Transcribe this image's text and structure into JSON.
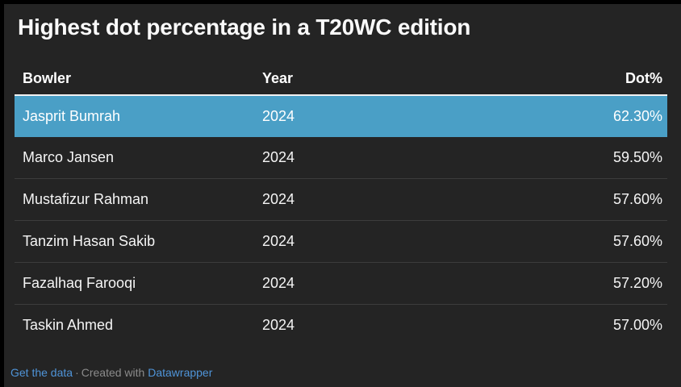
{
  "title": "Highest dot percentage in a T20WC edition",
  "colors": {
    "frame": "#000000",
    "background": "#242424",
    "highlight": "#4a9fc6",
    "link": "#4f94d8",
    "header_rule": "#f2f2f2",
    "row_divider": "#3c3c3c"
  },
  "table": {
    "columns": {
      "bowler": "Bowler",
      "year": "Year",
      "dot": "Dot%"
    },
    "rows": [
      {
        "bowler": "Jasprit Bumrah",
        "year": "2024",
        "dot": "62.30%",
        "highlighted": true
      },
      {
        "bowler": "Marco Jansen",
        "year": "2024",
        "dot": "59.50%",
        "highlighted": false
      },
      {
        "bowler": "Mustafizur Rahman",
        "year": "2024",
        "dot": "57.60%",
        "highlighted": false
      },
      {
        "bowler": "Tanzim Hasan Sakib",
        "year": "2024",
        "dot": "57.60%",
        "highlighted": false
      },
      {
        "bowler": "Fazalhaq Farooqi",
        "year": "2024",
        "dot": "57.20%",
        "highlighted": false
      },
      {
        "bowler": "Taskin Ahmed",
        "year": "2024",
        "dot": "57.00%",
        "highlighted": false
      }
    ]
  },
  "footer": {
    "get_data_link": "Get the data",
    "separator": "·",
    "created_with": "Created with",
    "datawrapper_link": "Datawrapper"
  },
  "chart_data": {
    "type": "table",
    "title": "Highest dot percentage in a T20WC edition",
    "columns": [
      "Bowler",
      "Year",
      "Dot%"
    ],
    "rows": [
      [
        "Jasprit Bumrah",
        2024,
        62.3
      ],
      [
        "Marco Jansen",
        2024,
        59.5
      ],
      [
        "Mustafizur Rahman",
        2024,
        57.6
      ],
      [
        "Tanzim Hasan Sakib",
        2024,
        57.6
      ],
      [
        "Fazalhaq Farooqi",
        2024,
        57.2
      ],
      [
        "Taskin Ahmed",
        2024,
        57.0
      ]
    ],
    "highlighted_row": "Jasprit Bumrah",
    "layout": {
      "year_format": "yyyy",
      "dot_format": "0.00%",
      "dot_align": "right"
    }
  }
}
